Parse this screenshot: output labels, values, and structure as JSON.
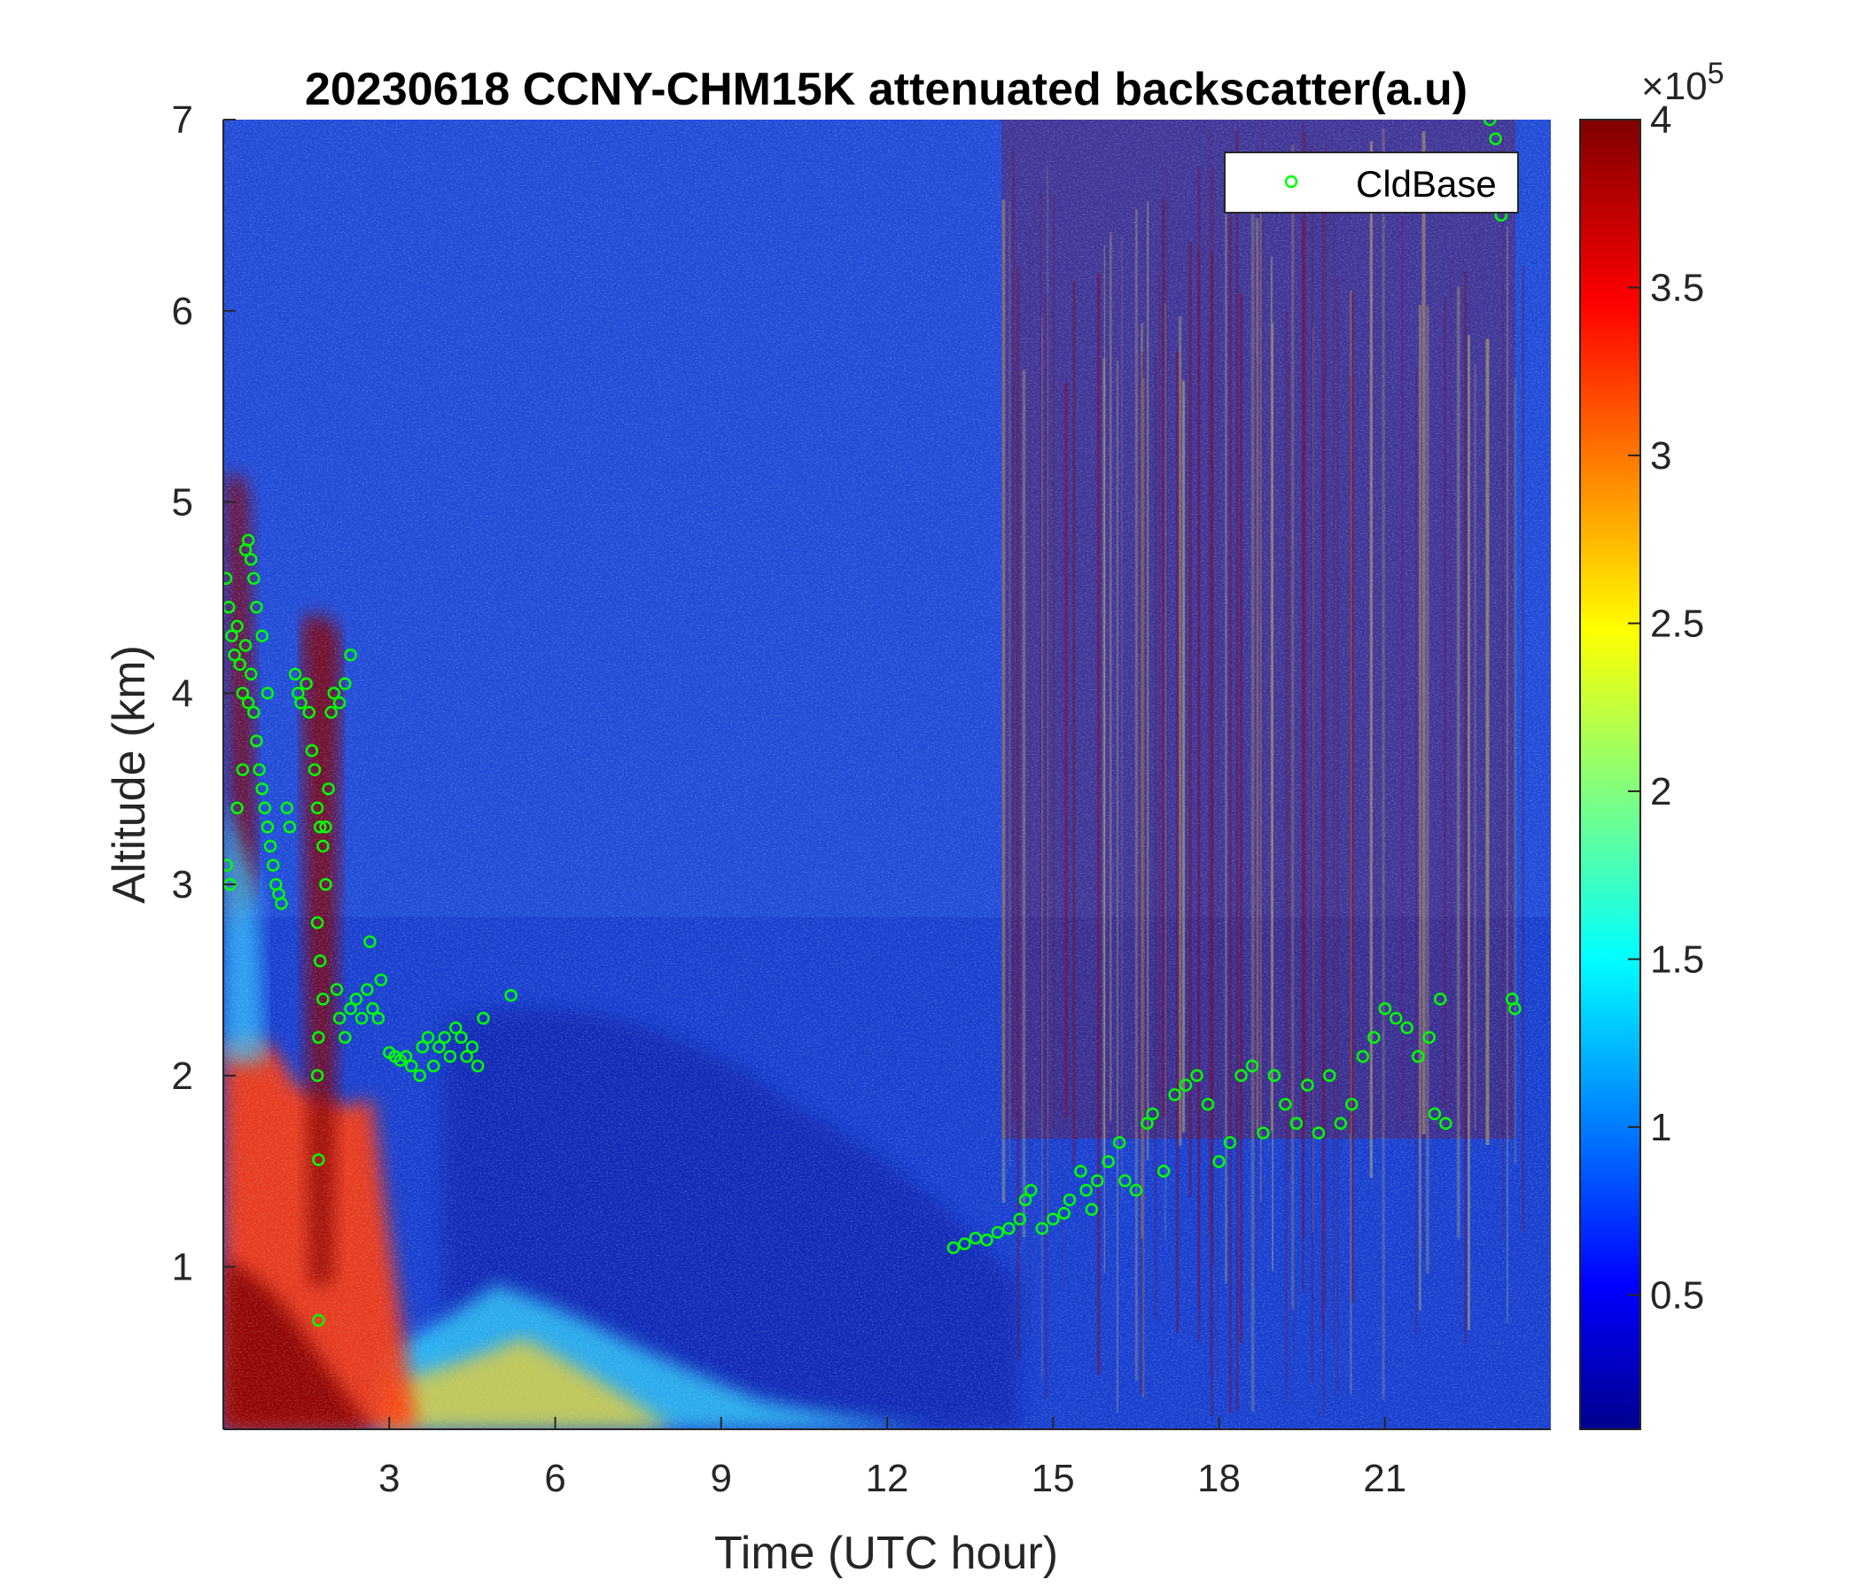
{
  "chart_data": {
    "type": "heatmap",
    "title": "20230618 CCNY-CHM15K attenuated backscatter(a.u)",
    "xlabel": "Time (UTC hour)",
    "ylabel": "Altitude (km)",
    "xlim": [
      0,
      24
    ],
    "ylim": [
      0.15,
      7
    ],
    "xticks": [
      3,
      6,
      9,
      12,
      15,
      18,
      21
    ],
    "xtick_labels": [
      "3",
      "6",
      "9",
      "12",
      "15",
      "18",
      "21"
    ],
    "yticks": [
      1,
      2,
      3,
      4,
      5,
      6,
      7
    ],
    "ytick_labels": [
      "1",
      "2",
      "3",
      "4",
      "5",
      "6",
      "7"
    ],
    "colorbar": {
      "colormap": "jet",
      "range": [
        0.1,
        4
      ],
      "ticks": [
        0.5,
        1,
        1.5,
        2,
        2.5,
        3,
        3.5,
        4
      ],
      "tick_labels": [
        "0.5",
        "1",
        "1.5",
        "2",
        "2.5",
        "3",
        "3.5",
        "4"
      ],
      "exponent_label": "×10",
      "exponent_power": "5"
    },
    "legend": {
      "position": "top-right",
      "entries": [
        "CldBase"
      ],
      "marker": "circle",
      "color": "#00ff00"
    },
    "colors": {
      "marker": "#00ff00",
      "axis": "#262626"
    },
    "series": [
      {
        "name": "CldBase",
        "points": [
          [
            0.05,
            4.6
          ],
          [
            0.1,
            4.45
          ],
          [
            0.15,
            4.3
          ],
          [
            0.2,
            4.2
          ],
          [
            0.25,
            4.35
          ],
          [
            0.3,
            4.15
          ],
          [
            0.35,
            4.0
          ],
          [
            0.4,
            4.25
          ],
          [
            0.45,
            3.95
          ],
          [
            0.06,
            3.1
          ],
          [
            0.12,
            3.0
          ],
          [
            0.5,
            4.1
          ],
          [
            0.55,
            3.9
          ],
          [
            0.6,
            3.75
          ],
          [
            0.65,
            3.6
          ],
          [
            0.7,
            3.5
          ],
          [
            0.75,
            3.4
          ],
          [
            0.8,
            3.3
          ],
          [
            0.85,
            3.2
          ],
          [
            0.9,
            3.1
          ],
          [
            0.95,
            3.0
          ],
          [
            1.0,
            2.95
          ],
          [
            1.05,
            2.9
          ],
          [
            0.4,
            4.75
          ],
          [
            0.45,
            4.8
          ],
          [
            0.5,
            4.7
          ],
          [
            0.55,
            4.6
          ],
          [
            0.6,
            4.45
          ],
          [
            0.7,
            4.3
          ],
          [
            0.8,
            4.0
          ],
          [
            1.15,
            3.4
          ],
          [
            1.2,
            3.3
          ],
          [
            0.35,
            3.6
          ],
          [
            0.25,
            3.4
          ],
          [
            1.3,
            4.1
          ],
          [
            1.35,
            4.0
          ],
          [
            1.4,
            3.95
          ],
          [
            1.5,
            4.05
          ],
          [
            1.55,
            3.9
          ],
          [
            1.6,
            3.7
          ],
          [
            1.65,
            3.6
          ],
          [
            1.7,
            3.4
          ],
          [
            1.75,
            3.3
          ],
          [
            1.8,
            3.2
          ],
          [
            1.85,
            3.0
          ],
          [
            1.7,
            2.8
          ],
          [
            1.75,
            2.6
          ],
          [
            1.8,
            2.4
          ],
          [
            1.72,
            2.2
          ],
          [
            1.7,
            2.0
          ],
          [
            1.72,
            1.56
          ],
          [
            1.72,
            0.72
          ],
          [
            1.95,
            3.9
          ],
          [
            2.0,
            4.0
          ],
          [
            2.1,
            3.95
          ],
          [
            2.2,
            4.05
          ],
          [
            2.3,
            4.2
          ],
          [
            1.9,
            3.5
          ],
          [
            1.85,
            3.3
          ],
          [
            2.05,
            2.45
          ],
          [
            2.1,
            2.3
          ],
          [
            2.2,
            2.2
          ],
          [
            2.3,
            2.35
          ],
          [
            2.4,
            2.4
          ],
          [
            2.5,
            2.3
          ],
          [
            2.6,
            2.45
          ],
          [
            2.7,
            2.35
          ],
          [
            2.8,
            2.3
          ],
          [
            2.85,
            2.5
          ],
          [
            2.65,
            2.7
          ],
          [
            3.0,
            2.12
          ],
          [
            3.1,
            2.1
          ],
          [
            3.2,
            2.08
          ],
          [
            3.3,
            2.1
          ],
          [
            3.4,
            2.05
          ],
          [
            3.55,
            2.0
          ],
          [
            3.6,
            2.15
          ],
          [
            3.7,
            2.2
          ],
          [
            3.8,
            2.05
          ],
          [
            3.9,
            2.15
          ],
          [
            4.0,
            2.2
          ],
          [
            4.1,
            2.1
          ],
          [
            4.2,
            2.25
          ],
          [
            4.3,
            2.2
          ],
          [
            4.4,
            2.1
          ],
          [
            4.5,
            2.15
          ],
          [
            4.6,
            2.05
          ],
          [
            4.7,
            2.3
          ],
          [
            5.2,
            2.42
          ],
          [
            13.2,
            1.1
          ],
          [
            13.4,
            1.12
          ],
          [
            13.6,
            1.15
          ],
          [
            13.8,
            1.14
          ],
          [
            14.0,
            1.18
          ],
          [
            14.2,
            1.2
          ],
          [
            14.4,
            1.25
          ],
          [
            14.5,
            1.35
          ],
          [
            14.6,
            1.4
          ],
          [
            14.8,
            1.2
          ],
          [
            15.0,
            1.25
          ],
          [
            15.2,
            1.28
          ],
          [
            15.3,
            1.35
          ],
          [
            15.5,
            1.5
          ],
          [
            15.6,
            1.4
          ],
          [
            15.7,
            1.3
          ],
          [
            15.8,
            1.45
          ],
          [
            16.0,
            1.55
          ],
          [
            16.2,
            1.65
          ],
          [
            16.3,
            1.45
          ],
          [
            16.5,
            1.4
          ],
          [
            16.7,
            1.75
          ],
          [
            16.8,
            1.8
          ],
          [
            17.0,
            1.5
          ],
          [
            17.2,
            1.9
          ],
          [
            17.4,
            1.95
          ],
          [
            17.6,
            2.0
          ],
          [
            17.8,
            1.85
          ],
          [
            18.0,
            1.55
          ],
          [
            18.2,
            1.65
          ],
          [
            18.4,
            2.0
          ],
          [
            18.6,
            2.05
          ],
          [
            18.8,
            1.7
          ],
          [
            19.0,
            2.0
          ],
          [
            19.2,
            1.85
          ],
          [
            19.4,
            1.75
          ],
          [
            19.6,
            1.95
          ],
          [
            19.8,
            1.7
          ],
          [
            20.0,
            2.0
          ],
          [
            20.2,
            1.75
          ],
          [
            20.4,
            1.85
          ],
          [
            20.6,
            2.1
          ],
          [
            20.8,
            2.2
          ],
          [
            21.0,
            2.35
          ],
          [
            21.2,
            2.3
          ],
          [
            21.4,
            2.25
          ],
          [
            21.6,
            2.1
          ],
          [
            21.8,
            2.2
          ],
          [
            21.9,
            1.8
          ],
          [
            22.0,
            2.4
          ],
          [
            22.1,
            1.75
          ],
          [
            22.9,
            7.0
          ],
          [
            23.0,
            6.9
          ],
          [
            23.1,
            6.5
          ],
          [
            23.3,
            2.4
          ],
          [
            23.35,
            2.35
          ]
        ]
      }
    ]
  }
}
